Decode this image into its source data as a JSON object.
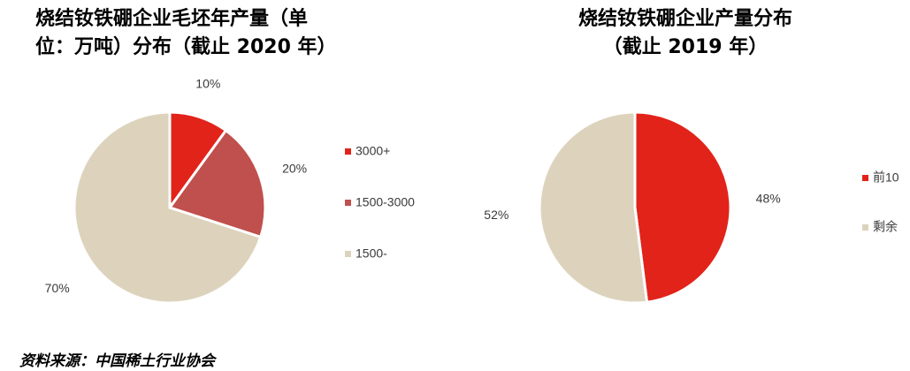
{
  "left_title": {
    "line1": "烧结钕铁硼企业毛坯年产量（单",
    "line2": "位：万吨）分布（截止 2020 年）"
  },
  "right_title": {
    "line1": "烧结钕铁硼企业产量分布",
    "line2": "（截止 2019 年）"
  },
  "source": "资料来源：中国稀土行业协会",
  "chart_data": [
    {
      "type": "pie",
      "title": "烧结钕铁硼企业毛坯年产量（单位：万吨）分布（截止 2020 年）",
      "categories": [
        "3000+",
        "1500-3000",
        "1500-"
      ],
      "values": [
        10,
        20,
        70
      ],
      "labels": [
        "10%",
        "20%",
        "70%"
      ],
      "colors": [
        "#e2231a",
        "#c0504d",
        "#ddd3bd"
      ],
      "legend_position": "right"
    },
    {
      "type": "pie",
      "title": "烧结钕铁硼企业产量分布（截止 2019 年）",
      "categories": [
        "前10",
        "剩余"
      ],
      "values": [
        48,
        52
      ],
      "labels": [
        "48%",
        "52%"
      ],
      "colors": [
        "#e2231a",
        "#ddd3bd"
      ],
      "legend_position": "right"
    }
  ]
}
